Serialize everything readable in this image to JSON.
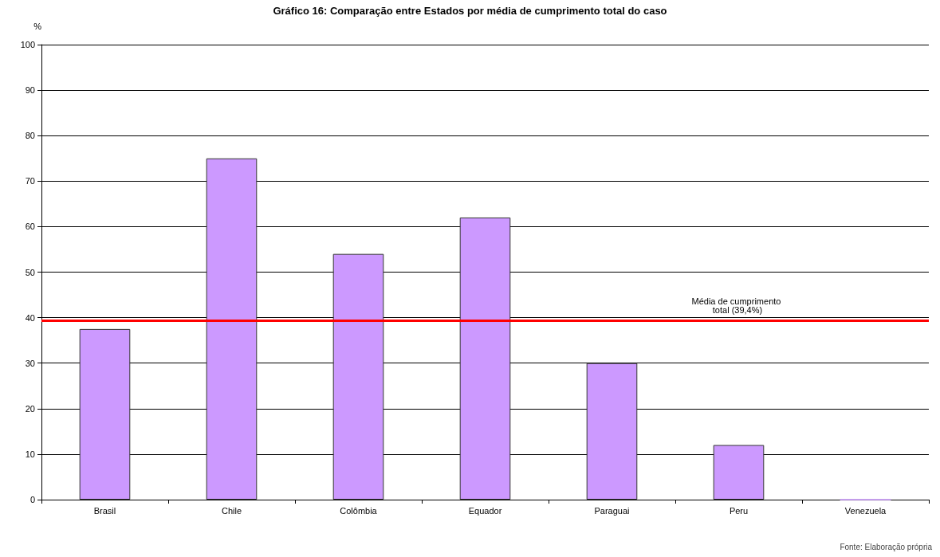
{
  "chart_data": {
    "type": "bar",
    "title": "Gráfico 16: Comparação entre Estados por média de cumprimento total do caso",
    "ylabel": "%",
    "categories": [
      "Brasil",
      "Chile",
      "Colômbia",
      "Equador",
      "Paraguai",
      "Peru",
      "Venezuela"
    ],
    "values": [
      37.5,
      75,
      54,
      62,
      30,
      12,
      0
    ],
    "color": "#cc99ff",
    "ylim": [
      0,
      100
    ],
    "yticks": [
      0,
      10,
      20,
      30,
      40,
      50,
      60,
      70,
      80,
      90,
      100
    ],
    "grid": "y",
    "ref_lines": [
      {
        "axis": "y",
        "value": 39.4,
        "label": "Média de cumprimento total (39,4%)",
        "color": "#ff0000"
      }
    ],
    "annotations": [
      "Fonte: Elaboração própria"
    ]
  }
}
